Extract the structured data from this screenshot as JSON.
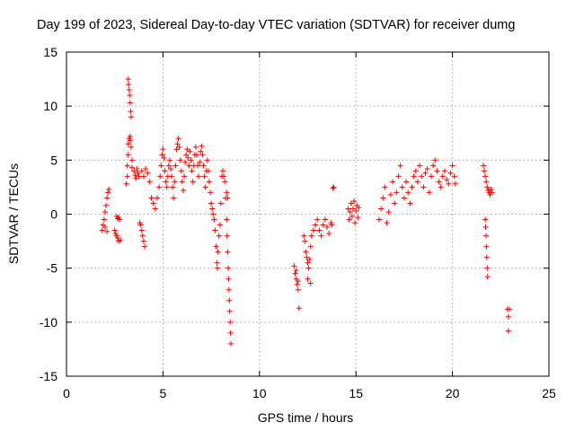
{
  "chart_data": {
    "type": "scatter",
    "title": "Day 199 of 2023, Sidereal Day-to-day VTEC variation (SDTVAR) for receiver dumg",
    "xlabel": "GPS time / hours",
    "ylabel": "SDTVAR / TECUs",
    "xlim": [
      0,
      25
    ],
    "ylim": [
      -15,
      15
    ],
    "xticks": [
      "0",
      "5",
      "10",
      "15",
      "20",
      "25"
    ],
    "yticks": [
      "15",
      "10",
      "5",
      "0",
      "-5",
      "-10",
      "-15"
    ],
    "grid": true,
    "marker": "+",
    "series_color": "#ff0000",
    "series": [
      {
        "name": "SDTVAR",
        "points": [
          [
            1.85,
            -1.5
          ],
          [
            1.9,
            -1.0
          ],
          [
            1.95,
            -0.5
          ],
          [
            2.0,
            0.2
          ],
          [
            2.05,
            0.8
          ],
          [
            2.1,
            1.5
          ],
          [
            2.15,
            2.0
          ],
          [
            2.2,
            2.3
          ],
          [
            2.1,
            -1.6
          ],
          [
            2.0,
            -1.2
          ],
          [
            2.5,
            -1.5
          ],
          [
            2.55,
            -1.8
          ],
          [
            2.6,
            -2.0
          ],
          [
            2.65,
            -2.2
          ],
          [
            2.7,
            -2.5
          ],
          [
            2.6,
            -0.2
          ],
          [
            2.65,
            -0.4
          ],
          [
            2.7,
            -0.3
          ],
          [
            2.75,
            -0.5
          ],
          [
            2.8,
            -2.4
          ],
          [
            3.1,
            2.8
          ],
          [
            3.15,
            3.5
          ],
          [
            3.15,
            4.5
          ],
          [
            3.2,
            5.5
          ],
          [
            3.2,
            6.5
          ],
          [
            3.25,
            7.0
          ],
          [
            3.3,
            7.2
          ],
          [
            3.3,
            6.8
          ],
          [
            3.35,
            6.2
          ],
          [
            3.4,
            5.0
          ],
          [
            3.2,
            12.5
          ],
          [
            3.22,
            12.0
          ],
          [
            3.25,
            11.5
          ],
          [
            3.27,
            11.0
          ],
          [
            3.3,
            10.3
          ],
          [
            3.32,
            9.5
          ],
          [
            3.35,
            9.0
          ],
          [
            3.4,
            4.3
          ],
          [
            3.5,
            4.0
          ],
          [
            3.55,
            3.6
          ],
          [
            3.6,
            3.3
          ],
          [
            3.65,
            4.2
          ],
          [
            3.7,
            3.8
          ],
          [
            3.75,
            3.5
          ],
          [
            3.8,
            -0.8
          ],
          [
            3.85,
            -1.0
          ],
          [
            3.9,
            -1.5
          ],
          [
            3.95,
            -2.0
          ],
          [
            4.0,
            -2.5
          ],
          [
            4.05,
            -3.0
          ],
          [
            3.9,
            4.0
          ],
          [
            4.0,
            3.5
          ],
          [
            4.1,
            4.2
          ],
          [
            4.2,
            3.8
          ],
          [
            4.3,
            3.0
          ],
          [
            4.4,
            1.5
          ],
          [
            4.5,
            1.0
          ],
          [
            4.6,
            0.5
          ],
          [
            4.7,
            1.5
          ],
          [
            4.8,
            2.5
          ],
          [
            4.85,
            3.5
          ],
          [
            4.9,
            4.5
          ],
          [
            4.95,
            5.5
          ],
          [
            5.0,
            6.0
          ],
          [
            5.05,
            5.2
          ],
          [
            5.1,
            4.0
          ],
          [
            5.15,
            3.0
          ],
          [
            5.2,
            2.5
          ],
          [
            5.25,
            3.5
          ],
          [
            5.3,
            4.5
          ],
          [
            5.35,
            5.0
          ],
          [
            5.4,
            4.2
          ],
          [
            5.45,
            3.5
          ],
          [
            5.5,
            2.5
          ],
          [
            5.55,
            1.5
          ],
          [
            5.6,
            3.0
          ],
          [
            5.65,
            4.5
          ],
          [
            5.7,
            6.0
          ],
          [
            5.75,
            6.5
          ],
          [
            5.8,
            7.0
          ],
          [
            5.85,
            6.2
          ],
          [
            5.9,
            5.0
          ],
          [
            5.95,
            4.0
          ],
          [
            6.0,
            3.0
          ],
          [
            6.05,
            2.2
          ],
          [
            6.1,
            3.5
          ],
          [
            6.15,
            4.8
          ],
          [
            6.2,
            5.5
          ],
          [
            6.25,
            6.0
          ],
          [
            6.3,
            5.2
          ],
          [
            6.35,
            4.5
          ],
          [
            6.4,
            5.8
          ],
          [
            6.45,
            5.0
          ],
          [
            6.5,
            4.0
          ],
          [
            6.55,
            3.0
          ],
          [
            6.6,
            4.5
          ],
          [
            6.65,
            5.5
          ],
          [
            6.7,
            6.2
          ],
          [
            6.75,
            5.5
          ],
          [
            6.8,
            4.5
          ],
          [
            6.85,
            3.5
          ],
          [
            6.9,
            4.8
          ],
          [
            6.95,
            5.8
          ],
          [
            7.0,
            6.3
          ],
          [
            7.05,
            5.5
          ],
          [
            7.1,
            4.5
          ],
          [
            7.15,
            3.5
          ],
          [
            7.2,
            2.5
          ],
          [
            7.25,
            4.0
          ],
          [
            7.3,
            5.0
          ],
          [
            7.35,
            4.0
          ],
          [
            7.4,
            3.0
          ],
          [
            7.45,
            2.0
          ],
          [
            7.5,
            1.0
          ],
          [
            7.55,
            0.5
          ],
          [
            7.6,
            0.0
          ],
          [
            7.65,
            -0.5
          ],
          [
            7.7,
            -1.5
          ],
          [
            7.75,
            -3.0
          ],
          [
            7.8,
            -4.5
          ],
          [
            7.82,
            -5.0
          ],
          [
            7.85,
            -3.5
          ],
          [
            7.9,
            -2.0
          ],
          [
            7.95,
            -1.0
          ],
          [
            8.0,
            1.0
          ],
          [
            8.05,
            3.5
          ],
          [
            8.1,
            4.0
          ],
          [
            8.15,
            3.5
          ],
          [
            8.2,
            3.0
          ],
          [
            8.25,
            1.5
          ],
          [
            8.3,
            -0.5
          ],
          [
            8.32,
            -2.0
          ],
          [
            8.35,
            -3.5
          ],
          [
            8.38,
            -5.0
          ],
          [
            8.4,
            -6.0
          ],
          [
            8.42,
            -7.0
          ],
          [
            8.44,
            -8.0
          ],
          [
            8.46,
            -9.0
          ],
          [
            8.48,
            -10.0
          ],
          [
            8.5,
            -11.0
          ],
          [
            8.52,
            -12.0
          ],
          [
            8.3,
            2.0
          ],
          [
            8.35,
            1.5
          ],
          [
            11.8,
            -4.8
          ],
          [
            11.85,
            -5.5
          ],
          [
            11.9,
            -6.0
          ],
          [
            11.95,
            -6.5
          ],
          [
            12.0,
            -7.0
          ],
          [
            12.05,
            -8.7
          ],
          [
            12.0,
            -6.2
          ],
          [
            11.9,
            -5.2
          ],
          [
            12.3,
            -2.0
          ],
          [
            12.35,
            -2.5
          ],
          [
            12.4,
            -3.5
          ],
          [
            12.45,
            -4.0
          ],
          [
            12.5,
            -4.5
          ],
          [
            12.55,
            -5.0
          ],
          [
            12.6,
            -4.2
          ],
          [
            12.65,
            -3.0
          ],
          [
            12.7,
            -2.0
          ],
          [
            12.5,
            -6.0
          ],
          [
            12.65,
            -6.4
          ],
          [
            12.8,
            -1.5
          ],
          [
            12.9,
            -1.0
          ],
          [
            13.0,
            -0.5
          ],
          [
            13.1,
            -1.5
          ],
          [
            13.2,
            -2.0
          ],
          [
            13.3,
            -1.0
          ],
          [
            13.4,
            -0.5
          ],
          [
            13.5,
            -1.2
          ],
          [
            13.6,
            -1.8
          ],
          [
            13.7,
            -0.8
          ],
          [
            13.8,
            2.4
          ],
          [
            13.85,
            2.5
          ],
          [
            13.75,
            -1.0
          ],
          [
            14.6,
            0.5
          ],
          [
            14.65,
            -0.5
          ],
          [
            14.7,
            0.2
          ],
          [
            14.75,
            1.0
          ],
          [
            14.8,
            -0.2
          ],
          [
            14.85,
            0.5
          ],
          [
            14.9,
            1.2
          ],
          [
            14.95,
            -0.8
          ],
          [
            15.0,
            0.3
          ],
          [
            15.05,
            0.8
          ],
          [
            15.1,
            -0.3
          ],
          [
            15.15,
            0.6
          ],
          [
            16.2,
            -0.5
          ],
          [
            16.3,
            0.5
          ],
          [
            16.4,
            1.5
          ],
          [
            16.5,
            2.5
          ],
          [
            16.6,
            -0.8
          ],
          [
            16.7,
            0.2
          ],
          [
            16.8,
            1.8
          ],
          [
            16.9,
            3.0
          ],
          [
            17.0,
            1.0
          ],
          [
            17.1,
            2.0
          ],
          [
            17.2,
            3.5
          ],
          [
            17.3,
            4.5
          ],
          [
            17.4,
            2.5
          ],
          [
            17.5,
            1.5
          ],
          [
            17.6,
            3.0
          ],
          [
            17.7,
            2.0
          ],
          [
            17.8,
            1.0
          ],
          [
            17.9,
            2.5
          ],
          [
            18.0,
            3.5
          ],
          [
            18.1,
            4.0
          ],
          [
            18.2,
            3.0
          ],
          [
            18.3,
            4.5
          ],
          [
            18.4,
            3.5
          ],
          [
            18.5,
            2.5
          ],
          [
            18.6,
            3.8
          ],
          [
            18.7,
            4.2
          ],
          [
            18.8,
            2.0
          ],
          [
            18.9,
            3.5
          ],
          [
            19.0,
            4.5
          ],
          [
            19.1,
            5.0
          ],
          [
            19.2,
            4.0
          ],
          [
            19.3,
            3.0
          ],
          [
            19.4,
            2.5
          ],
          [
            19.5,
            3.5
          ],
          [
            19.6,
            4.0
          ],
          [
            19.7,
            3.2
          ],
          [
            19.8,
            2.8
          ],
          [
            19.9,
            3.8
          ],
          [
            20.0,
            4.5
          ],
          [
            20.1,
            3.5
          ],
          [
            20.15,
            2.8
          ],
          [
            21.6,
            4.5
          ],
          [
            21.65,
            4.0
          ],
          [
            21.7,
            3.5
          ],
          [
            21.75,
            3.0
          ],
          [
            21.8,
            2.5
          ],
          [
            21.85,
            2.2
          ],
          [
            21.9,
            2.0
          ],
          [
            21.95,
            1.8
          ],
          [
            22.0,
            2.3
          ],
          [
            22.05,
            2.0
          ],
          [
            21.7,
            -0.5
          ],
          [
            21.72,
            -1.2
          ],
          [
            21.74,
            -2.0
          ],
          [
            21.76,
            -3.0
          ],
          [
            21.78,
            -4.0
          ],
          [
            21.8,
            -5.0
          ],
          [
            21.82,
            -5.8
          ],
          [
            22.85,
            -8.8
          ],
          [
            22.9,
            -9.5
          ],
          [
            22.95,
            -8.8
          ],
          [
            22.9,
            -10.8
          ]
        ]
      }
    ]
  }
}
